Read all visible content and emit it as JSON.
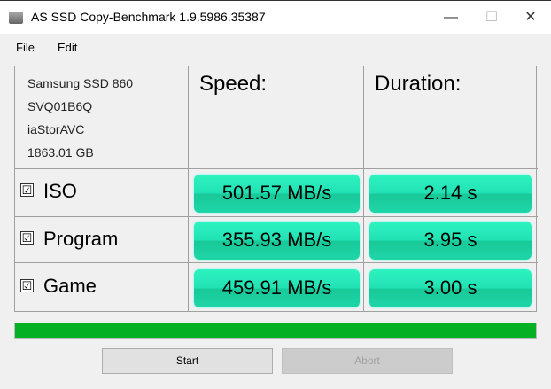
{
  "window": {
    "title": "AS SSD Copy-Benchmark 1.9.5986.35387",
    "minimize": "—",
    "maximize": "☐",
    "close": "✕"
  },
  "menu": {
    "file": "File",
    "edit": "Edit"
  },
  "drive": {
    "model": "Samsung SSD 860",
    "firmware": "SVQ01B6Q",
    "driver": "iaStorAVC",
    "capacity": "1863.01 GB"
  },
  "headers": {
    "speed": "Speed:",
    "duration": "Duration:"
  },
  "rows": [
    {
      "label": "ISO",
      "checked": true,
      "speed": "501.57 MB/s",
      "duration": "2.14 s"
    },
    {
      "label": "Program",
      "checked": true,
      "speed": "355.93 MB/s",
      "duration": "3.95 s"
    },
    {
      "label": "Game",
      "checked": true,
      "speed": "459.91 MB/s",
      "duration": "3.00 s"
    }
  ],
  "checkmark": "☑",
  "progress": {
    "percent": 100,
    "color": "#06b025"
  },
  "buttons": {
    "start": "Start",
    "abort": "Abort"
  },
  "colors": {
    "result_bg": "#22e2b4"
  }
}
